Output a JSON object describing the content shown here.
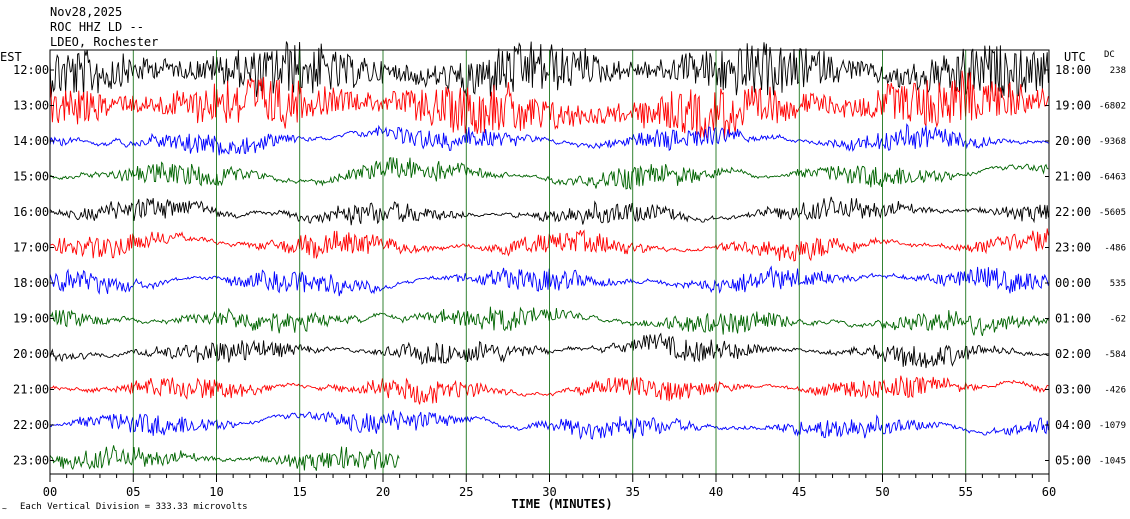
{
  "header": {
    "date": "Nov28,2025",
    "station": "ROC HHZ LD --",
    "network": "LDEO, Rochester"
  },
  "left_axis_label": "EST",
  "right_axis_label": "UTC",
  "dc_label": "DC",
  "footer_note": "Each Vertical Division =  333.33 microvolts",
  "colors": {
    "cycle": [
      "#000000",
      "#ff0000",
      "#0000ff",
      "#006400"
    ],
    "grid": "#006400",
    "frame": "#000000"
  },
  "chart_data": {
    "type": "line",
    "xlabel": "TIME (MINUTES)",
    "xlim": [
      0,
      60
    ],
    "x_ticks": [
      "00",
      "05",
      "10",
      "15",
      "20",
      "25",
      "30",
      "35",
      "40",
      "45",
      "50",
      "55",
      "60"
    ],
    "x_tick_values": [
      0,
      5,
      10,
      15,
      20,
      25,
      30,
      35,
      40,
      45,
      50,
      55,
      60
    ],
    "rows": [
      {
        "est": "12:00",
        "utc": "18:00",
        "dc": "238"
      },
      {
        "est": "13:00",
        "utc": "19:00",
        "dc": "-6802"
      },
      {
        "est": "14:00",
        "utc": "20:00",
        "dc": "-9368"
      },
      {
        "est": "15:00",
        "utc": "21:00",
        "dc": "-6463"
      },
      {
        "est": "16:00",
        "utc": "22:00",
        "dc": "-5605"
      },
      {
        "est": "17:00",
        "utc": "23:00",
        "dc": "-486"
      },
      {
        "est": "18:00",
        "utc": "00:00",
        "dc": "535"
      },
      {
        "est": "19:00",
        "utc": "01:00",
        "dc": "-62"
      },
      {
        "est": "20:00",
        "utc": "02:00",
        "dc": "-584"
      },
      {
        "est": "21:00",
        "utc": "03:00",
        "dc": "-426"
      },
      {
        "est": "22:00",
        "utc": "04:00",
        "dc": "-1079"
      },
      {
        "est": "23:00",
        "utc": "05:00",
        "dc": "-1045"
      }
    ],
    "end_minute_last_row": 21
  }
}
